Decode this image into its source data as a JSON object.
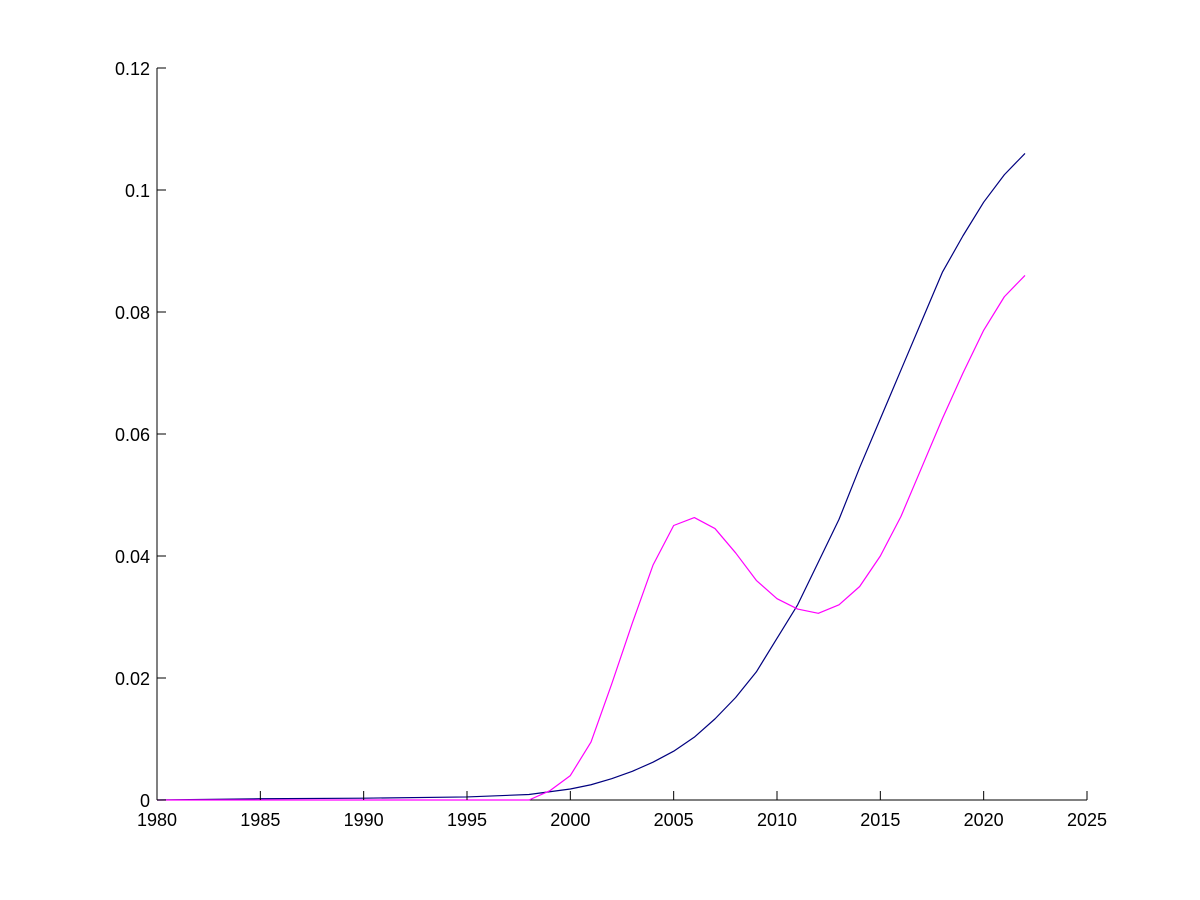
{
  "chart_data": {
    "type": "line",
    "title": "",
    "xlabel": "",
    "ylabel": "",
    "xlim": [
      1980,
      2025
    ],
    "ylim": [
      0,
      0.12
    ],
    "xticks": [
      1980,
      1985,
      1990,
      1995,
      2000,
      2005,
      2010,
      2015,
      2020,
      2025
    ],
    "xtick_labels": [
      "1980",
      "1985",
      "1990",
      "1995",
      "2000",
      "2005",
      "2010",
      "2015",
      "2020",
      "2025"
    ],
    "yticks": [
      0,
      0.02,
      0.04,
      0.06,
      0.08,
      0.1,
      0.12
    ],
    "ytick_labels": [
      "0",
      "0.02",
      "0.04",
      "0.06",
      "0.08",
      "0.1",
      "0.12"
    ],
    "grid": false,
    "legend": "none",
    "series": [
      {
        "color": "#00007f",
        "x": [
          1980,
          1985,
          1990,
          1995,
          1998,
          2000,
          2001,
          2002,
          2003,
          2004,
          2005,
          2006,
          2007,
          2008,
          2009,
          2010,
          2011,
          2012,
          2013,
          2014,
          2015,
          2016,
          2017,
          2018,
          2019,
          2020,
          2021,
          2022
        ],
        "y": [
          0,
          0.0002,
          0.0003,
          0.0005,
          0.0009,
          0.0018,
          0.0025,
          0.0035,
          0.0047,
          0.0062,
          0.008,
          0.0103,
          0.0133,
          0.0168,
          0.021,
          0.0265,
          0.032,
          0.039,
          0.046,
          0.0545,
          0.0625,
          0.0705,
          0.0785,
          0.0865,
          0.0925,
          0.098,
          0.1025,
          0.106
        ]
      },
      {
        "color": "#ff00ff",
        "x": [
          1980,
          1985,
          1990,
          1995,
          1998,
          1999,
          2000,
          2001,
          2002,
          2003,
          2004,
          2005,
          2006,
          2007,
          2008,
          2009,
          2010,
          2011,
          2012,
          2013,
          2014,
          2015,
          2016,
          2017,
          2018,
          2019,
          2020,
          2021,
          2022
        ],
        "y": [
          0,
          0,
          0,
          0,
          0,
          0.0015,
          0.004,
          0.0095,
          0.019,
          0.029,
          0.0385,
          0.045,
          0.0463,
          0.0445,
          0.0405,
          0.036,
          0.033,
          0.0313,
          0.0306,
          0.032,
          0.035,
          0.04,
          0.0465,
          0.0545,
          0.0625,
          0.07,
          0.077,
          0.0825,
          0.086
        ]
      }
    ]
  }
}
